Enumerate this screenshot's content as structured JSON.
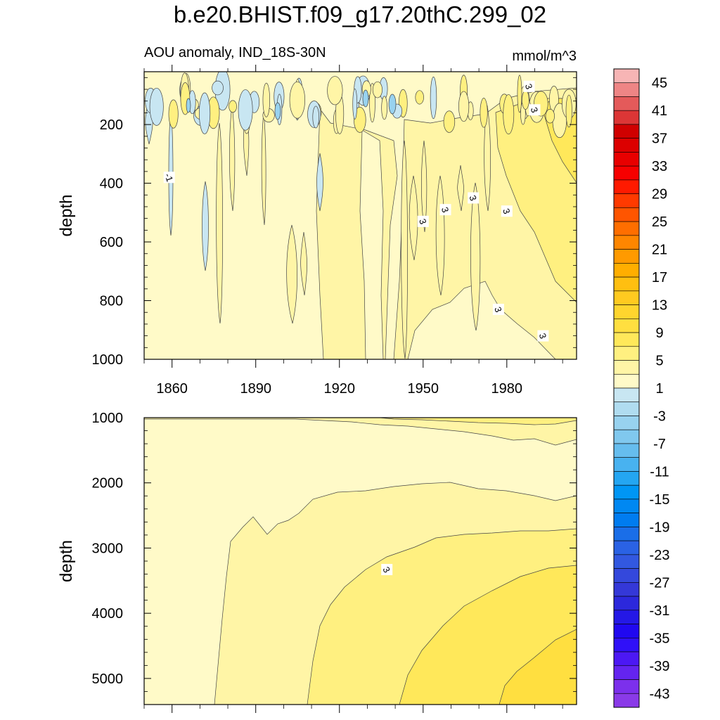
{
  "chart_data": {
    "type": "heatmap",
    "title": "b.e20.BHIST.f09_g17.20thC.299_02",
    "subtitle_left": "AOU anomaly, IND_18S-30N",
    "subtitle_right": "mmol/m^3",
    "colorbar": {
      "labels": [
        "45",
        "41",
        "37",
        "33",
        "29",
        "25",
        "21",
        "17",
        "13",
        "9",
        "5",
        "1",
        "-3",
        "-7",
        "-11",
        "-15",
        "-19",
        "-23",
        "-27",
        "-31",
        "-35",
        "-39",
        "-43"
      ],
      "levels_top_to_bottom": [
        47,
        45,
        43,
        41,
        39,
        37,
        35,
        33,
        31,
        29,
        27,
        25,
        23,
        21,
        19,
        17,
        15,
        13,
        11,
        9,
        7,
        5,
        3,
        1,
        -1,
        -3,
        -5,
        -7,
        -9,
        -11,
        -13,
        -15,
        -17,
        -19,
        -21,
        -23,
        -25,
        -27,
        -29,
        -31,
        -33,
        -35,
        -37,
        -39,
        -41,
        -43,
        -45
      ],
      "colors_top_to_bottom": [
        "#f7b5b5",
        "#ee8585",
        "#e45a5a",
        "#dc3636",
        "#d00000",
        "#dc0000",
        "#e80000",
        "#f70000",
        "#ff1a00",
        "#ff3a00",
        "#ff5500",
        "#ff6e00",
        "#ff8600",
        "#ff9a00",
        "#ffae00",
        "#ffbf10",
        "#ffca20",
        "#ffd52e",
        "#ffdf40",
        "#ffe85a",
        "#fff080",
        "#fff5a6",
        "#fffac8",
        "#c8e6f2",
        "#b0dcf0",
        "#98d2ef",
        "#80c8ee",
        "#66bdee",
        "#48b2f0",
        "#24a6f2",
        "#0096f4",
        "#0088f2",
        "#007cf0",
        "#1a6ee8",
        "#2a62e4",
        "#3258e0",
        "#3448dc",
        "#3438d8",
        "#2c28dc",
        "#2418e6",
        "#2008f0",
        "#3010f8",
        "#4c18f4",
        "#6424f0",
        "#7c30ec",
        "#8a3ae8"
      ]
    },
    "panels": [
      {
        "name": "upper",
        "ylabel": "depth",
        "ylim": [
          20,
          1000
        ],
        "yticks": [
          200,
          400,
          600,
          800,
          1000
        ],
        "ytick_labels": [
          "200",
          "400",
          "600",
          "800",
          "1000"
        ],
        "xlim": [
          1850,
          2005
        ],
        "xticks": [
          1860,
          1890,
          1920,
          1950,
          1980
        ],
        "xtick_labels": [
          "1860",
          "1890",
          "1920",
          "1950",
          "1980"
        ],
        "contour_labels": [
          {
            "text": "-1",
            "year": 1859,
            "depth": 380
          },
          {
            "text": "3",
            "year": 1988,
            "depth": 70
          },
          {
            "text": "3",
            "year": 1990,
            "depth": 150
          },
          {
            "text": "3",
            "year": 1968,
            "depth": 450
          },
          {
            "text": "3",
            "year": 1958,
            "depth": 490
          },
          {
            "text": "3",
            "year": 1950,
            "depth": 530
          },
          {
            "text": "3",
            "year": 1980,
            "depth": 495
          },
          {
            "text": "3",
            "year": 1977,
            "depth": 830
          },
          {
            "text": "3",
            "year": 1993,
            "depth": 920
          }
        ]
      },
      {
        "name": "lower",
        "ylabel": "depth",
        "ylim": [
          1000,
          5400
        ],
        "yticks": [
          1000,
          2000,
          3000,
          4000,
          5000
        ],
        "ytick_labels": [
          "1000",
          "2000",
          "3000",
          "4000",
          "5000"
        ],
        "xlim": [
          1850,
          2005
        ],
        "xticks": [
          1860,
          1890,
          1920,
          1950,
          1980
        ],
        "contour_labels": [
          {
            "text": "3",
            "year": 1937,
            "depth": 3330
          }
        ]
      }
    ]
  }
}
